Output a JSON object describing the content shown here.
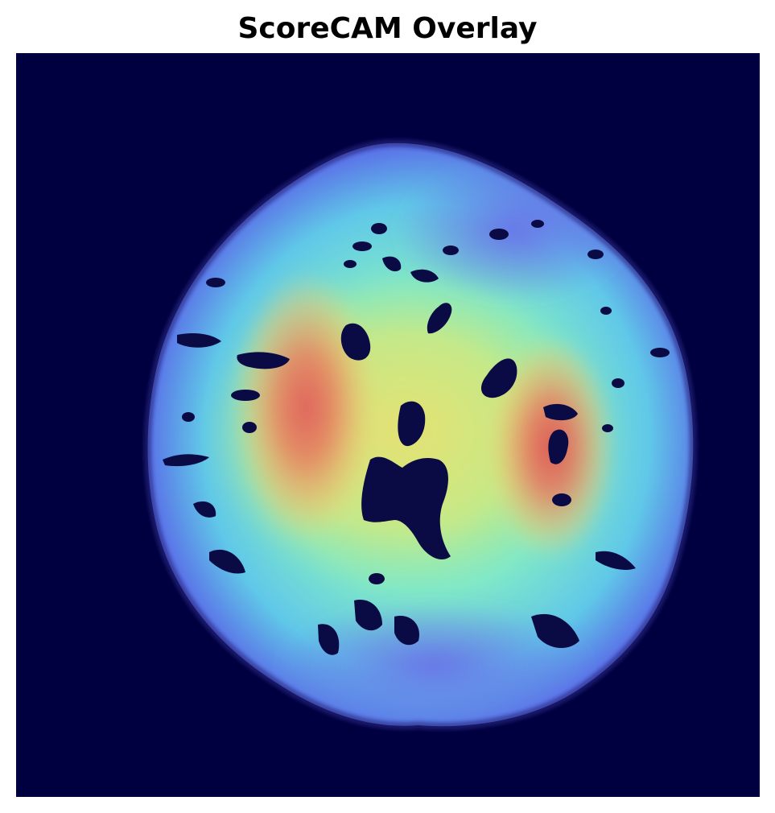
{
  "figure": {
    "title": "ScoreCAM Overlay"
  },
  "colors": {
    "background": "#000040",
    "heatmap_low": "#5a50e0",
    "heatmap_mid": "#70e0d0",
    "heatmap_yellow": "#e8e870",
    "heatmap_high": "#e06060",
    "sulcus_dark": "#0a0a40"
  },
  "image": {
    "modality": "axial brain MRI slice",
    "overlay_type": "ScoreCAM jet-colormap heatmap",
    "axes_visible": false
  }
}
